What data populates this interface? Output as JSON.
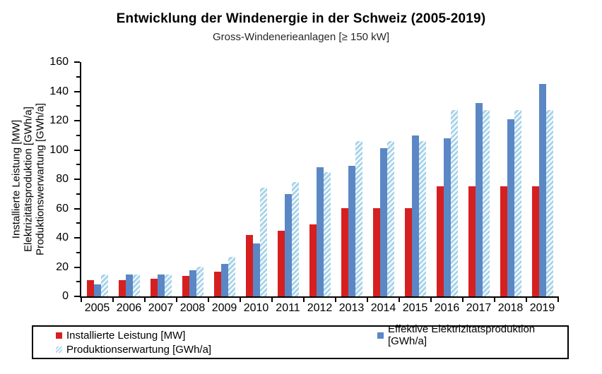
{
  "title": "Entwicklung der Windenergie in der Schweiz (2005-2019)",
  "subtitle": "Gross-Windenerieanlagen [≥ 150 kW]",
  "chart_data": {
    "type": "bar",
    "categories": [
      "2005",
      "2006",
      "2007",
      "2008",
      "2009",
      "2010",
      "2011",
      "2012",
      "2013",
      "2014",
      "2015",
      "2016",
      "2017",
      "2018",
      "2019"
    ],
    "series": [
      {
        "name": "Installierte Leistung [MW]",
        "color": "#d62020",
        "pattern": "solid",
        "values": [
          11,
          11,
          12,
          14,
          17,
          42,
          45,
          49,
          60,
          60,
          60,
          75,
          75,
          75,
          75
        ]
      },
      {
        "name": "Effektive Elektrizitätsproduktion [GWh/a]",
        "color": "#5b87c5",
        "pattern": "solid",
        "values": [
          8,
          15,
          15,
          18,
          22,
          36,
          70,
          88,
          89,
          101,
          110,
          108,
          132,
          121,
          145
        ]
      },
      {
        "name": "Produktionserwartung [GWh/a]",
        "color": "#a9d4ea",
        "pattern": "diagonal-hatch",
        "hatch_background": "#ffffff",
        "values": [
          15,
          15,
          15,
          20,
          27,
          74,
          78,
          85,
          106,
          106,
          106,
          127,
          127,
          127,
          127
        ]
      }
    ],
    "ylabel_lines": [
      "Installierte Leistung [MW]",
      "Elektrizitätsproduktion [GWh/a]",
      "Produktionswerwartung [GWh/a]"
    ],
    "ylim": [
      0,
      160
    ],
    "yticks": [
      0,
      20,
      40,
      60,
      80,
      100,
      120,
      140,
      160
    ],
    "ytick_minor_step": 10,
    "grid": false,
    "legend_position": "bottom"
  }
}
